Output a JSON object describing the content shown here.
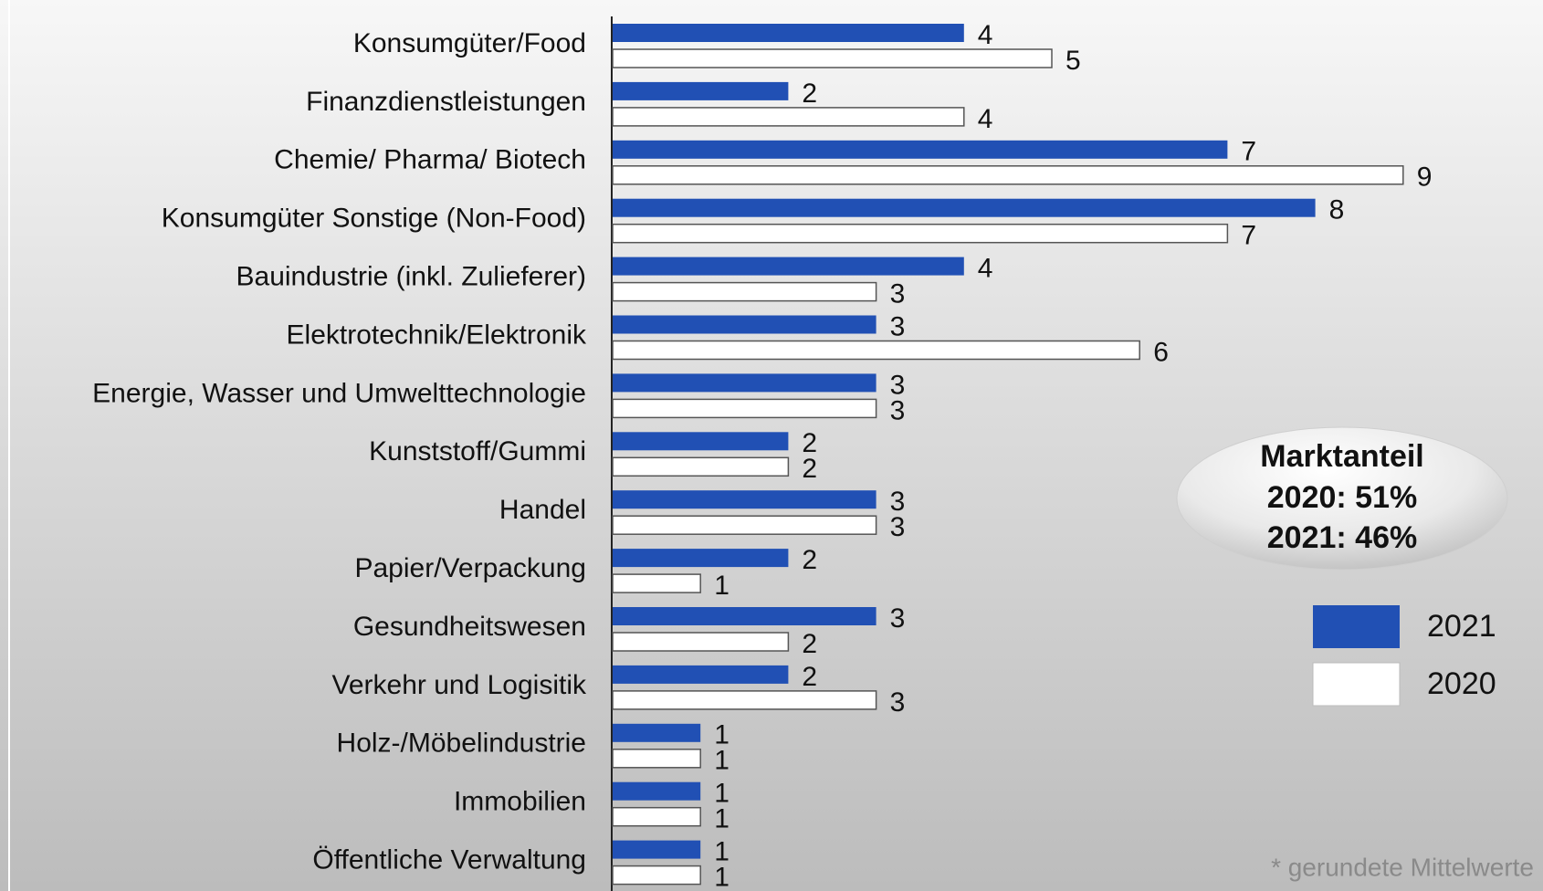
{
  "chart_data": {
    "type": "hbar",
    "categories": [
      "Konsumgüter/Food",
      "Finanzdienstleistungen",
      "Chemie/ Pharma/ Biotech",
      "Konsumgüter Sonstige (Non-Food)",
      "Bauindustrie (inkl. Zulieferer)",
      "Elektrotechnik/Elektronik",
      "Energie, Wasser und Umwelttechnologie",
      "Kunststoff/Gummi",
      "Handel",
      "Papier/Verpackung",
      "Gesundheitswesen",
      "Verkehr und Logisitik",
      "Holz-/Möbelindustrie",
      "Immobilien",
      "Öffentliche Verwaltung"
    ],
    "series": [
      {
        "name": "2021",
        "color": "#2150b4",
        "values": [
          4,
          2,
          7,
          8,
          4,
          3,
          3,
          2,
          3,
          2,
          3,
          2,
          1,
          1,
          1
        ]
      },
      {
        "name": "2020",
        "color": "#ffffff",
        "values": [
          5,
          4,
          9,
          7,
          3,
          6,
          3,
          2,
          3,
          1,
          2,
          3,
          1,
          1,
          1
        ]
      }
    ],
    "xlim": [
      0,
      10
    ],
    "annotation": [
      "Marktanteil",
      "2020: 51%",
      "2021: 46%"
    ],
    "footnote": "* gerundete Mittelwerte"
  }
}
